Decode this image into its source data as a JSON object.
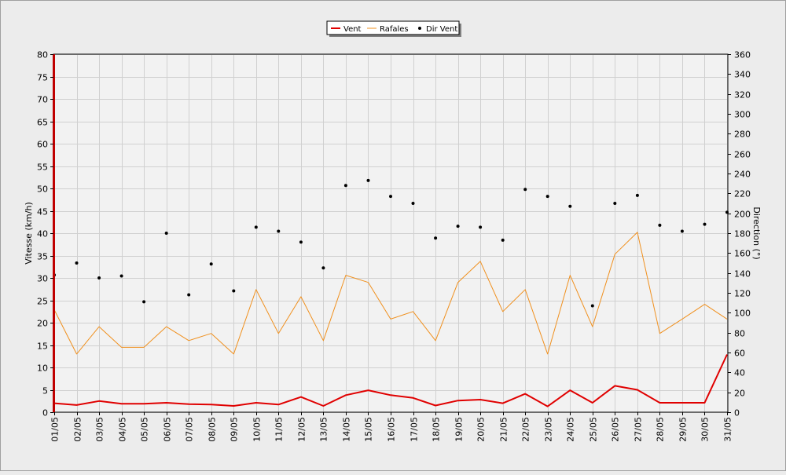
{
  "chart_data": {
    "type": "line",
    "categories": [
      "01/05",
      "02/05",
      "03/05",
      "04/05",
      "05/05",
      "06/05",
      "07/05",
      "08/05",
      "09/05",
      "10/05",
      "11/05",
      "12/05",
      "13/05",
      "14/05",
      "15/05",
      "16/05",
      "17/05",
      "18/05",
      "19/05",
      "20/05",
      "21/05",
      "22/05",
      "23/05",
      "24/05",
      "25/05",
      "26/05",
      "27/05",
      "28/05",
      "29/05",
      "30/05",
      "31/05"
    ],
    "ylabel": "Vitesse (km/h)",
    "y2label": "Direction (°)",
    "ylim": [
      0,
      80
    ],
    "y2lim": [
      0,
      360
    ],
    "yticks": [
      "0",
      "5",
      "10",
      "15",
      "20",
      "25",
      "30",
      "35",
      "40",
      "45",
      "50",
      "55",
      "60",
      "65",
      "70",
      "75",
      "80"
    ],
    "y2ticks": [
      "0",
      "20",
      "40",
      "60",
      "80",
      "100",
      "120",
      "140",
      "160",
      "180",
      "200",
      "220",
      "240",
      "260",
      "280",
      "300",
      "320",
      "340",
      "360"
    ],
    "grid": true,
    "legend_position": "top-center",
    "series": [
      {
        "name": "Vent",
        "style": "line",
        "axis": "left",
        "color": "#e00000",
        "values": [
          2.0,
          1.6,
          2.5,
          1.9,
          1.9,
          2.1,
          1.8,
          1.7,
          1.4,
          2.1,
          1.7,
          3.4,
          1.4,
          3.8,
          4.9,
          3.8,
          3.2,
          1.5,
          2.6,
          2.8,
          2.0,
          4.1,
          1.3,
          4.9,
          2.1,
          5.9,
          5.0,
          2.1,
          2.1,
          2.1,
          12.9
        ]
      },
      {
        "name": "Rafales",
        "style": "line",
        "axis": "left",
        "color": "#f0901e",
        "values": [
          22.9,
          13.0,
          19.1,
          14.5,
          14.5,
          19.1,
          16.0,
          17.6,
          13.0,
          27.4,
          17.6,
          25.8,
          16.0,
          30.6,
          29.0,
          20.8,
          22.5,
          16.0,
          29.0,
          33.7,
          22.5,
          27.4,
          13.0,
          30.6,
          19.1,
          35.3,
          40.2,
          17.6,
          20.8,
          24.1,
          20.8
        ]
      },
      {
        "name": "Dir Vent",
        "style": "points",
        "axis": "right",
        "color": "#000000",
        "values": [
          138,
          150,
          135,
          137,
          111,
          180,
          118,
          149,
          122,
          186,
          182,
          171,
          145,
          228,
          233,
          217,
          210,
          175,
          187,
          186,
          173,
          224,
          217,
          207,
          107,
          210,
          218,
          188,
          182,
          189,
          201
        ]
      }
    ]
  }
}
